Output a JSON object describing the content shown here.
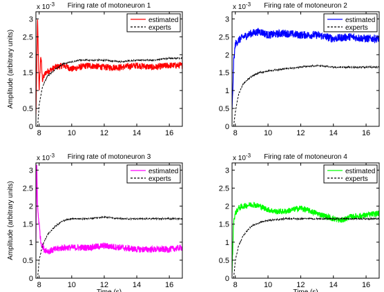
{
  "figure": {
    "background": "#ffffff"
  },
  "chart_data": [
    {
      "type": "line",
      "title": "Firing rate of motoneuron 1",
      "xlabel": "",
      "ylabel": "Amplitude (arbitrary units)",
      "y_multiplier": "x 10^-3",
      "xlim": [
        7.8,
        16.8
      ],
      "ylim": [
        0,
        3.2
      ],
      "xticks": [
        8,
        10,
        12,
        14,
        16
      ],
      "yticks": [
        0,
        0.5,
        1,
        1.5,
        2,
        2.5,
        3
      ],
      "legend": "top-right",
      "series": [
        {
          "name": "estimated",
          "color": "#ff0000",
          "style": "solid",
          "noise": 0.09,
          "x": [
            7.8,
            7.9,
            8.0,
            8.1,
            8.2,
            8.4,
            8.6,
            9.0,
            9.5,
            10.0,
            10.5,
            11,
            12,
            13,
            14,
            15,
            16,
            16.8
          ],
          "y": [
            0.3,
            3.0,
            1.0,
            2.0,
            1.3,
            1.5,
            1.55,
            1.65,
            1.7,
            1.6,
            1.65,
            1.7,
            1.65,
            1.65,
            1.7,
            1.65,
            1.7,
            1.7
          ]
        },
        {
          "name": "experts",
          "color": "#000000",
          "style": "dashed",
          "noise": 0.02,
          "x": [
            7.9,
            8.0,
            8.2,
            8.5,
            9.0,
            9.5,
            10.0,
            10.5,
            11,
            12,
            13,
            14,
            15,
            16,
            16.8
          ],
          "y": [
            0.0,
            0.6,
            1.1,
            1.4,
            1.6,
            1.75,
            1.8,
            1.85,
            1.85,
            1.85,
            1.8,
            1.85,
            1.85,
            1.9,
            1.9
          ]
        }
      ]
    },
    {
      "type": "line",
      "title": "Firing rate of motoneuron 2",
      "xlabel": "",
      "ylabel": "",
      "y_multiplier": "x 10^-3",
      "xlim": [
        7.8,
        16.8
      ],
      "ylim": [
        0,
        3.2
      ],
      "xticks": [
        8,
        10,
        12,
        14,
        16
      ],
      "yticks": [
        0,
        0.5,
        1,
        1.5,
        2,
        2.5,
        3
      ],
      "legend": "top-right",
      "series": [
        {
          "name": "estimated",
          "color": "#0000ff",
          "style": "solid",
          "noise": 0.11,
          "x": [
            7.8,
            7.9,
            8.0,
            8.2,
            8.5,
            9.0,
            9.5,
            10.0,
            11,
            12,
            13,
            14,
            15,
            16,
            16.8
          ],
          "y": [
            0.4,
            1.8,
            2.3,
            2.4,
            2.5,
            2.6,
            2.65,
            2.55,
            2.6,
            2.55,
            2.55,
            2.45,
            2.5,
            2.45,
            2.45
          ]
        },
        {
          "name": "experts",
          "color": "#000000",
          "style": "dashed",
          "noise": 0.02,
          "x": [
            7.9,
            8.0,
            8.2,
            8.5,
            9.0,
            9.5,
            10.0,
            11,
            12,
            13,
            14,
            15,
            16,
            16.8
          ],
          "y": [
            0.0,
            0.4,
            0.9,
            1.2,
            1.4,
            1.5,
            1.55,
            1.6,
            1.65,
            1.7,
            1.65,
            1.65,
            1.65,
            1.65
          ]
        }
      ]
    },
    {
      "type": "line",
      "title": "Firing rate of motoneuron 3",
      "xlabel": "Time (s)",
      "ylabel": "Amplitude (arbitrary units)",
      "y_multiplier": "x 10^-3",
      "xlim": [
        7.8,
        16.8
      ],
      "ylim": [
        0,
        3.2
      ],
      "xticks": [
        8,
        10,
        12,
        14,
        16
      ],
      "yticks": [
        0,
        0.5,
        1,
        1.5,
        2,
        2.5,
        3
      ],
      "legend": "top-right",
      "series": [
        {
          "name": "estimated",
          "color": "#ff00ff",
          "style": "solid",
          "noise": 0.09,
          "x": [
            7.8,
            7.85,
            7.9,
            8.0,
            8.1,
            8.3,
            8.6,
            9.0,
            9.5,
            10.0,
            11,
            12,
            13,
            14,
            15,
            16,
            16.8
          ],
          "y": [
            1.0,
            3.2,
            2.0,
            1.5,
            1.0,
            0.8,
            0.75,
            0.8,
            0.85,
            0.85,
            0.85,
            0.9,
            0.85,
            0.8,
            0.8,
            0.8,
            0.85
          ]
        },
        {
          "name": "experts",
          "color": "#000000",
          "style": "dashed",
          "noise": 0.02,
          "x": [
            7.9,
            8.0,
            8.2,
            8.5,
            9.0,
            9.5,
            10.0,
            11,
            12,
            13,
            14,
            15,
            16,
            16.8
          ],
          "y": [
            0.0,
            0.5,
            0.9,
            1.2,
            1.45,
            1.6,
            1.65,
            1.65,
            1.7,
            1.65,
            1.65,
            1.65,
            1.65,
            1.65
          ]
        }
      ]
    },
    {
      "type": "line",
      "title": "Firing rate of motoneuron 4",
      "xlabel": "Time (s)",
      "ylabel": "",
      "y_multiplier": "x 10^-3",
      "xlim": [
        7.8,
        16.8
      ],
      "ylim": [
        0,
        3.2
      ],
      "xticks": [
        8,
        10,
        12,
        14,
        16
      ],
      "yticks": [
        0,
        0.5,
        1,
        1.5,
        2,
        2.5,
        3
      ],
      "legend": "top-right",
      "series": [
        {
          "name": "estimated",
          "color": "#00ff00",
          "style": "solid",
          "noise": 0.08,
          "x": [
            7.8,
            7.9,
            8.0,
            8.2,
            8.5,
            9.0,
            9.5,
            10.0,
            10.5,
            11,
            12,
            13,
            14,
            14.5,
            15,
            16,
            16.8
          ],
          "y": [
            0.2,
            1.6,
            1.8,
            1.95,
            2.0,
            2.05,
            2.0,
            1.9,
            1.85,
            1.85,
            1.95,
            1.8,
            1.65,
            1.6,
            1.7,
            1.75,
            1.8
          ]
        },
        {
          "name": "experts",
          "color": "#000000",
          "style": "dashed",
          "noise": 0.02,
          "x": [
            7.9,
            8.0,
            8.2,
            8.5,
            9.0,
            9.5,
            10.0,
            11,
            12,
            13,
            14,
            15,
            16,
            16.8
          ],
          "y": [
            0.0,
            0.5,
            0.9,
            1.2,
            1.45,
            1.55,
            1.6,
            1.65,
            1.65,
            1.65,
            1.65,
            1.65,
            1.65,
            1.65
          ]
        }
      ]
    }
  ]
}
